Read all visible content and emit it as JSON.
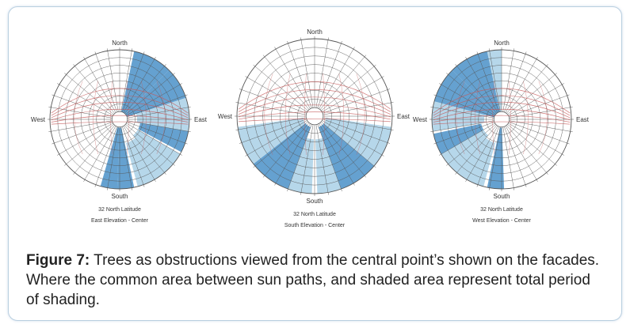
{
  "diagrams": [
    {
      "north": "North",
      "south": "South",
      "east": "East",
      "west": "West",
      "latitude": "32  North Latitude",
      "elevation": "East Elevation - Center"
    },
    {
      "north": "North",
      "south": "South",
      "east": "East",
      "west": "West",
      "latitude": "32  North Latitude",
      "elevation": "South Elevation - Center"
    },
    {
      "north": "North",
      "south": "South",
      "east": "East",
      "west": "West",
      "latitude": "32  North Latitude",
      "elevation": "West Elevation - Center"
    }
  ],
  "caption": {
    "label": "Figure 7:",
    "text": " Trees as obstructions viewed from the central point’s shown on the facades. Where the common area between sun paths, and shaded area represent total period of shading."
  },
  "colors": {
    "shade_dark": "#4a90c8",
    "shade_light": "#a9d0e6",
    "grid": "#555555",
    "sunpath": "#c65a5a",
    "frame_border": "#b9cfe0"
  }
}
